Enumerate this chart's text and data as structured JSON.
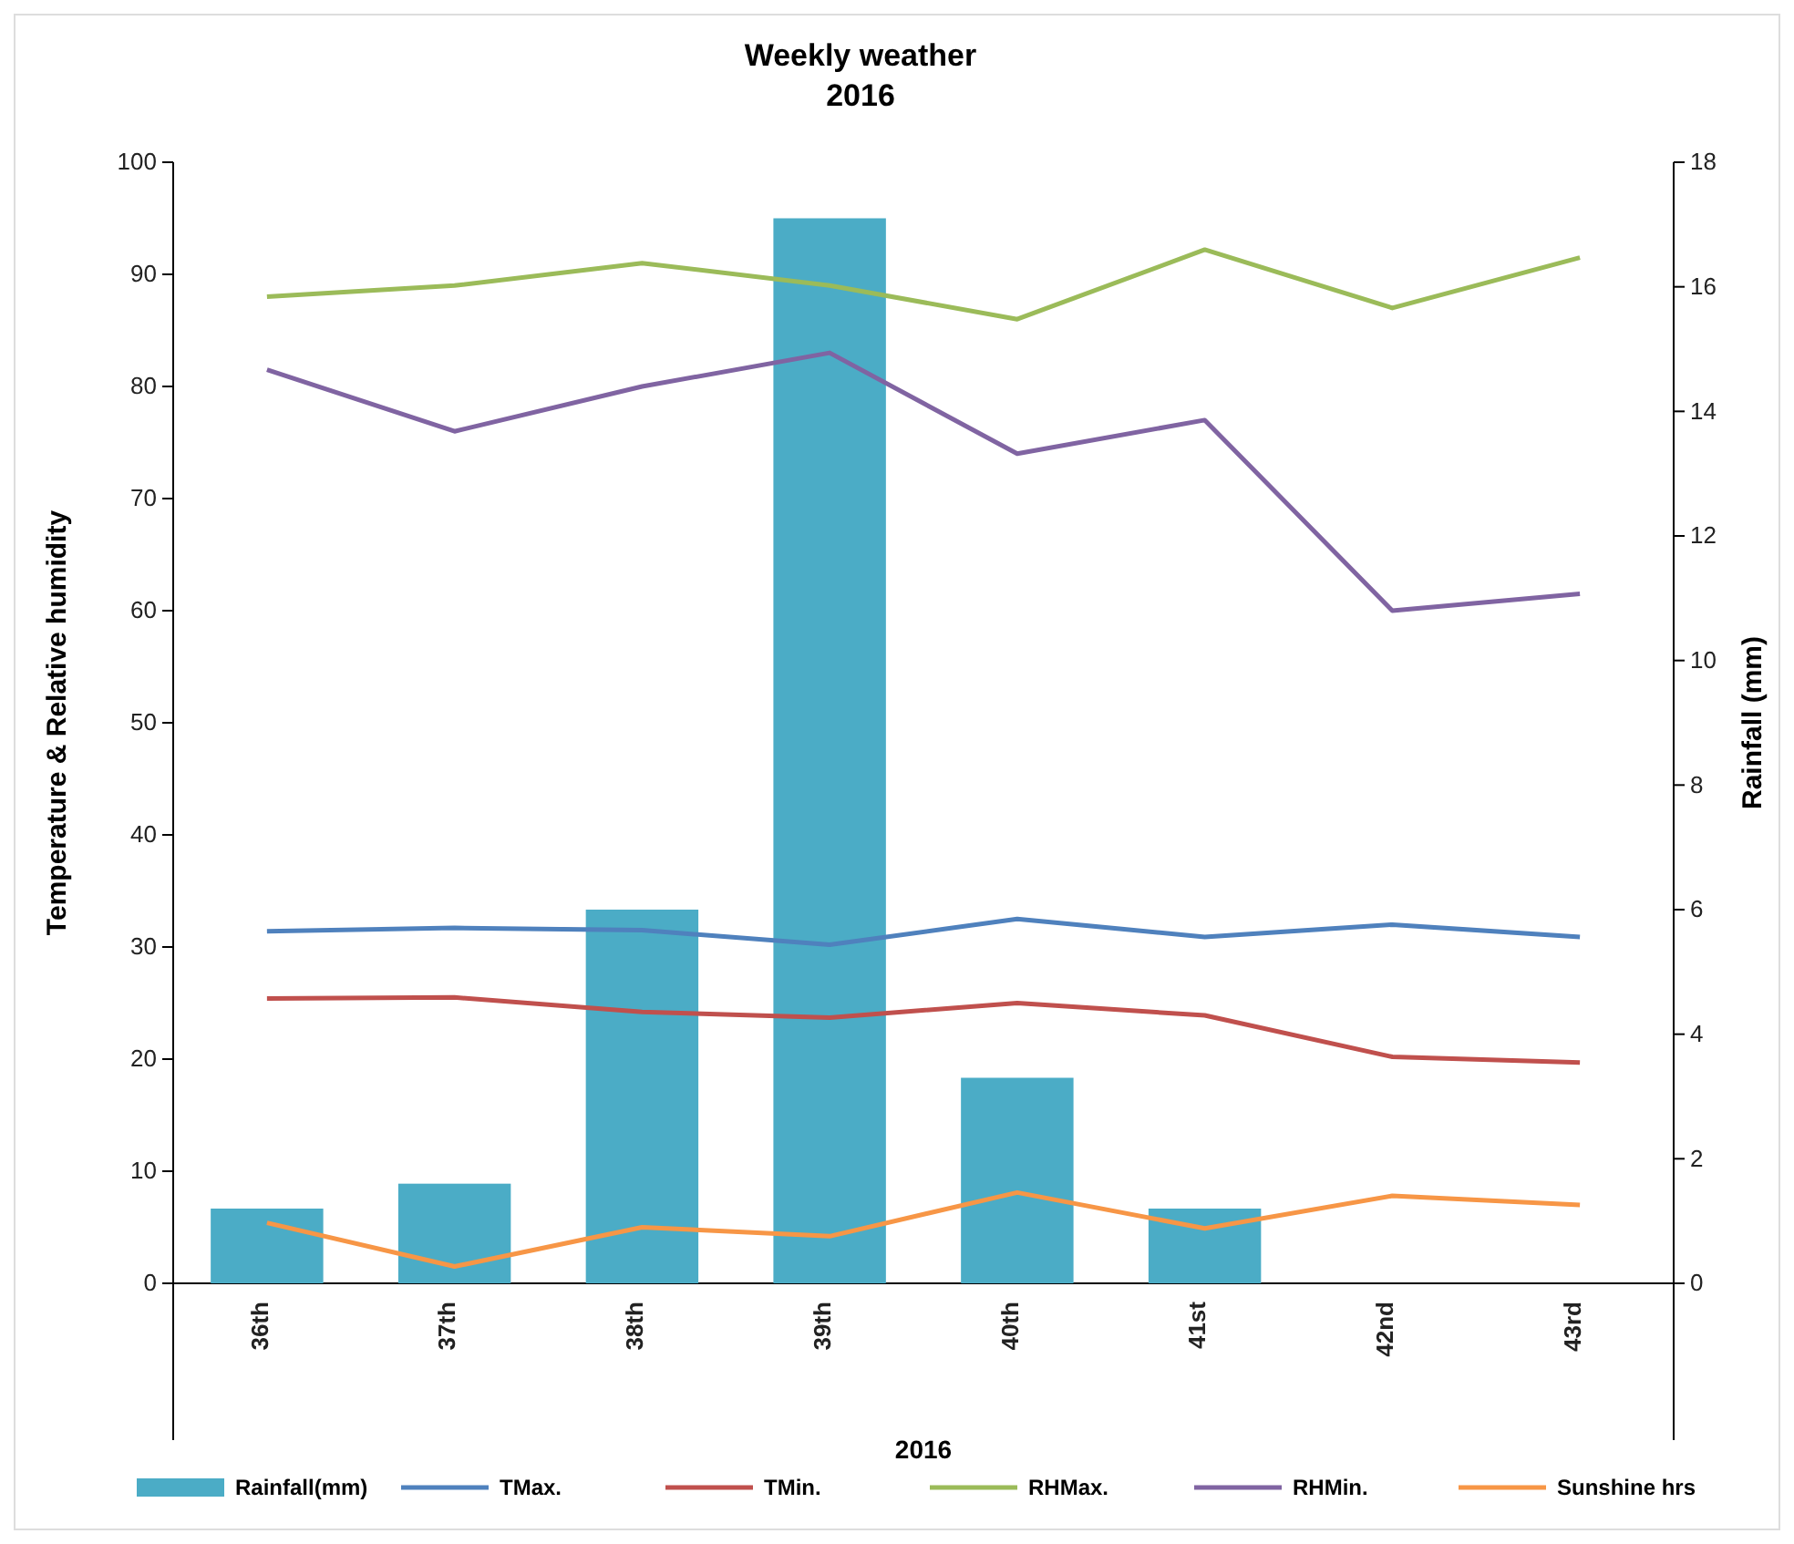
{
  "chart_data": {
    "type": "line",
    "title": "Weekly weather",
    "subtitle": "2016",
    "xlabel": "2016",
    "ylabel": "Temperature & Relative humidity",
    "y2label": "Rainfall (mm)",
    "categories": [
      "36th",
      "37th",
      "38th",
      "39th",
      "40th",
      "41st",
      "42nd",
      "43rd"
    ],
    "ylim": [
      0,
      100
    ],
    "yticks": [
      0,
      10,
      20,
      30,
      40,
      50,
      60,
      70,
      80,
      90,
      100
    ],
    "y2lim": [
      0,
      18
    ],
    "y2ticks": [
      0,
      2,
      4,
      6,
      8,
      10,
      12,
      14,
      16,
      18
    ],
    "grid": false,
    "legend": "bottom",
    "marker": "none",
    "line_style": "solid",
    "series": [
      {
        "name": "Rainfall(mm)",
        "type": "bar",
        "axis": "y2",
        "color": "#4bacc6",
        "values": [
          1.2,
          1.6,
          6.0,
          17.1,
          3.3,
          1.2,
          0,
          0
        ]
      },
      {
        "name": "TMax.",
        "color": "#4f81bd",
        "values": [
          31.4,
          31.7,
          31.5,
          30.2,
          32.5,
          30.9,
          32.0,
          30.9
        ]
      },
      {
        "name": "TMin.",
        "color": "#c0504d",
        "values": [
          25.4,
          25.5,
          24.2,
          23.7,
          25.0,
          23.9,
          20.2,
          19.7
        ]
      },
      {
        "name": "RHMax.",
        "color": "#9bbb59",
        "values": [
          88,
          89,
          91,
          89,
          86,
          92.2,
          87,
          91.5
        ]
      },
      {
        "name": "RHMin.",
        "color": "#8064a2",
        "values": [
          81.5,
          76,
          80,
          83,
          74,
          77,
          60,
          61.5
        ]
      },
      {
        "name": "Sunshine hrs",
        "color": "#f79646",
        "values": [
          5.4,
          1.5,
          5,
          4.2,
          8.1,
          4.9,
          7.8,
          7
        ]
      }
    ]
  }
}
